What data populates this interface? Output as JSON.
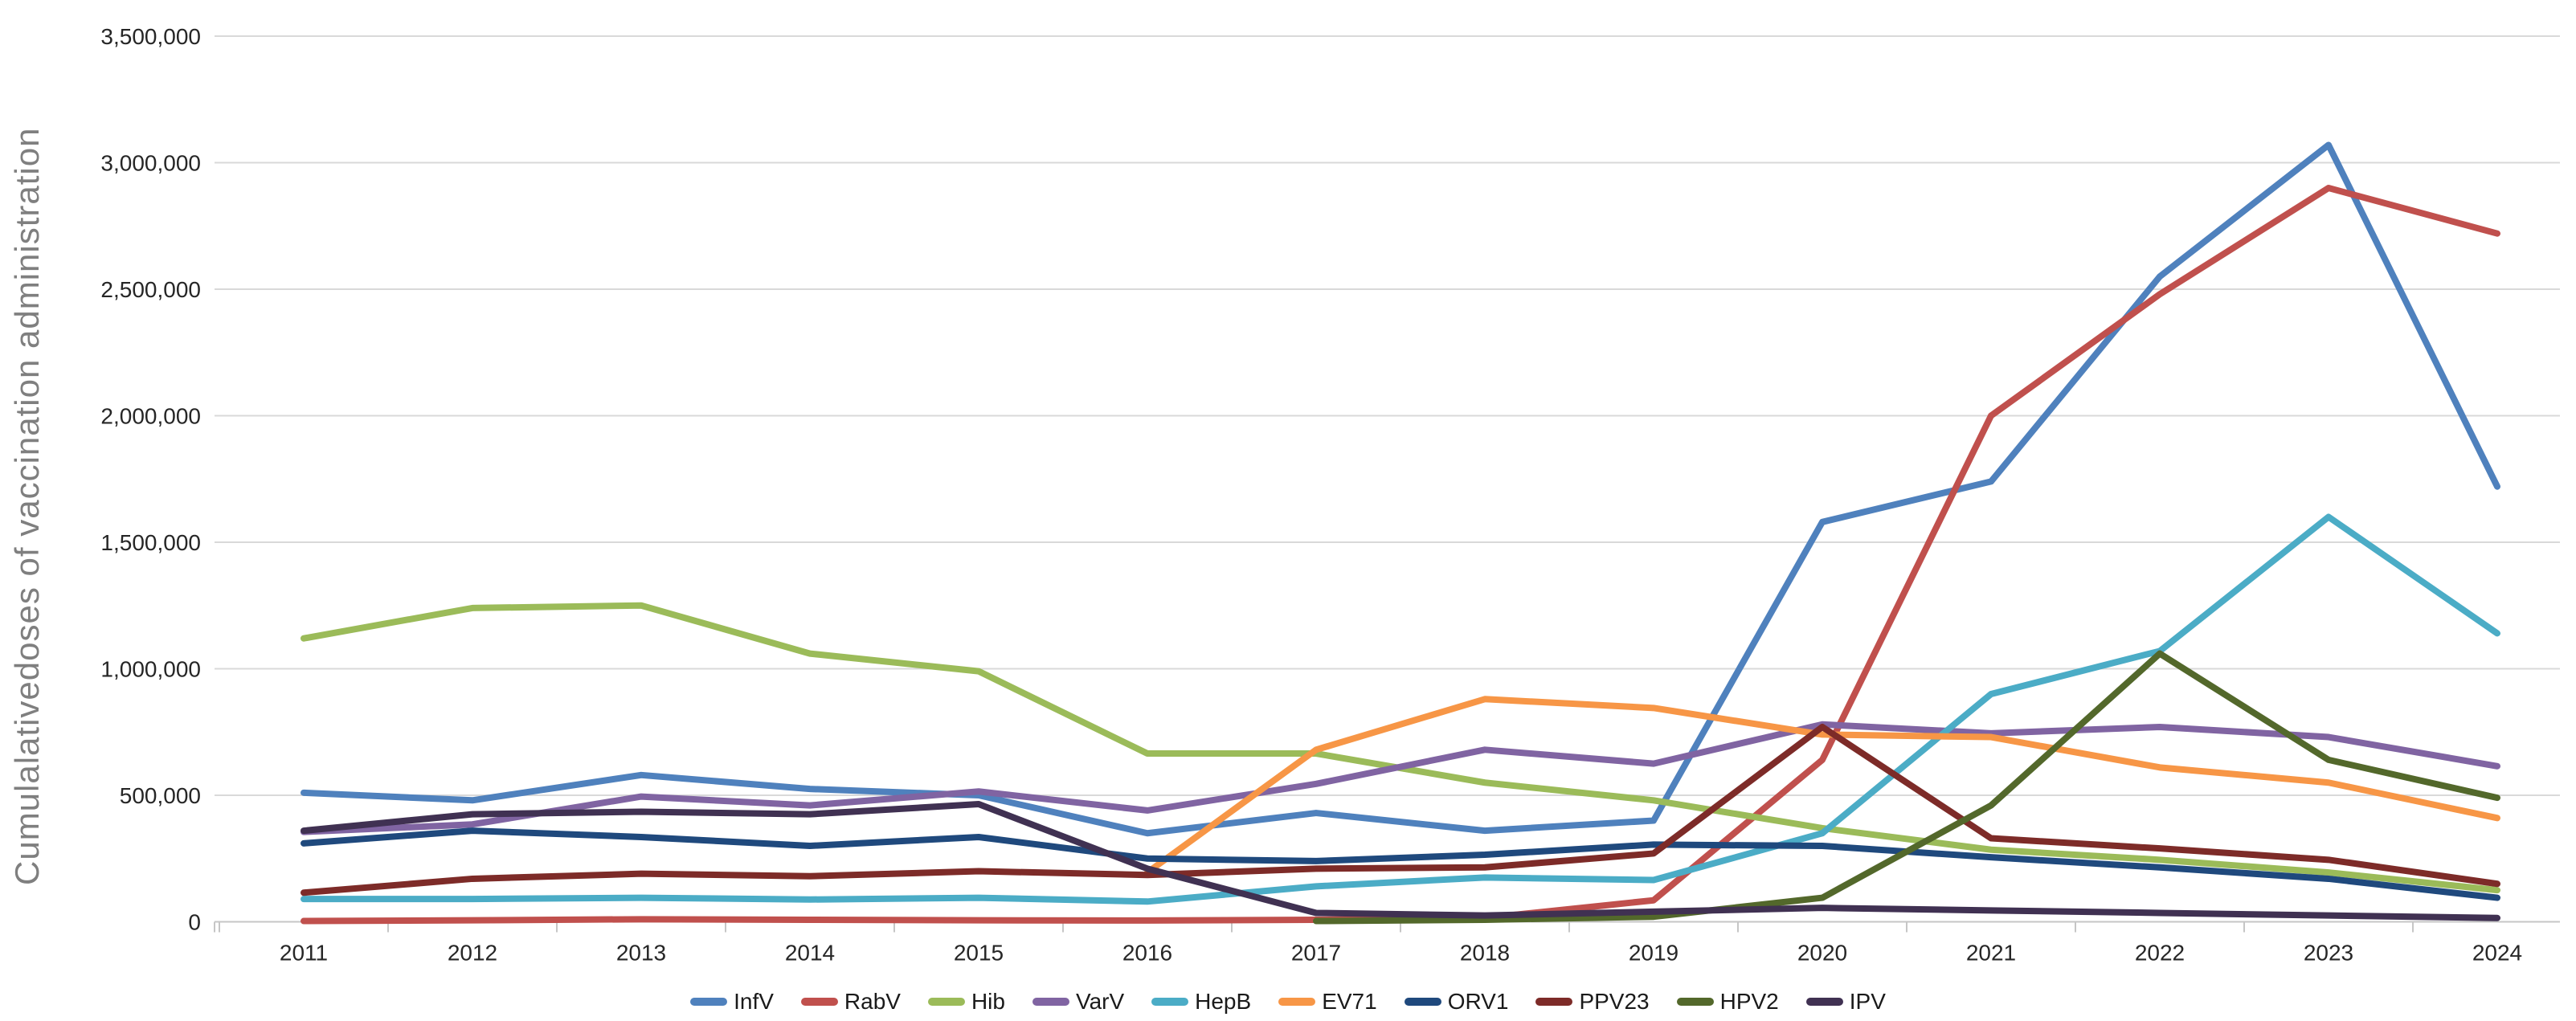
{
  "chart": {
    "y_axis_title": "Cumulalativedoses of vaccination administration"
  },
  "chart_data": {
    "type": "line",
    "title": "",
    "xlabel": "",
    "ylabel": "Cumulalativedoses of vaccination administration",
    "categories": [
      "2011",
      "2012",
      "2013",
      "2014",
      "2015",
      "2016",
      "2017",
      "2018",
      "2019",
      "2020",
      "2021",
      "2022",
      "2023",
      "2024"
    ],
    "ylim": [
      0,
      3500000
    ],
    "y_step": 500000,
    "y_tick_labels": [
      "0",
      "500,000",
      "1,000,000",
      "1,500,000",
      "2,000,000",
      "2,500,000",
      "3,000,000",
      "3,500,000"
    ],
    "grid": true,
    "legend_position": "bottom",
    "series": [
      {
        "name": "InfV",
        "color": "#4F81BD",
        "values": [
          510000,
          480000,
          580000,
          525000,
          500000,
          350000,
          430000,
          360000,
          400000,
          1580000,
          1740000,
          2550000,
          3070000,
          1720000
        ]
      },
      {
        "name": "RabV",
        "color": "#C0504D",
        "values": [
          3000,
          6000,
          10000,
          8000,
          6000,
          5000,
          8000,
          15000,
          85000,
          640000,
          2000000,
          2480000,
          2900000,
          2720000
        ]
      },
      {
        "name": "Hib",
        "color": "#9BBB59",
        "values": [
          1120000,
          1240000,
          1250000,
          1060000,
          990000,
          665000,
          665000,
          550000,
          480000,
          370000,
          285000,
          245000,
          195000,
          125000
        ]
      },
      {
        "name": "VarV",
        "color": "#8064A2",
        "values": [
          355000,
          385000,
          495000,
          460000,
          515000,
          440000,
          545000,
          680000,
          625000,
          780000,
          745000,
          770000,
          730000,
          615000
        ]
      },
      {
        "name": "HepB",
        "color": "#4BACC6",
        "values": [
          90000,
          90000,
          95000,
          88000,
          95000,
          80000,
          140000,
          175000,
          165000,
          350000,
          900000,
          1070000,
          1600000,
          1140000
        ]
      },
      {
        "name": "EV71",
        "color": "#F79646",
        "values": [
          null,
          null,
          null,
          null,
          null,
          195000,
          680000,
          880000,
          845000,
          740000,
          730000,
          610000,
          550000,
          410000
        ]
      },
      {
        "name": "ORV1",
        "color": "#1F497D",
        "values": [
          310000,
          360000,
          335000,
          300000,
          335000,
          250000,
          240000,
          265000,
          305000,
          300000,
          255000,
          215000,
          170000,
          95000
        ]
      },
      {
        "name": "PPV23",
        "color": "#7D2B28",
        "values": [
          115000,
          170000,
          190000,
          180000,
          200000,
          185000,
          210000,
          215000,
          270000,
          770000,
          330000,
          290000,
          245000,
          150000
        ]
      },
      {
        "name": "HPV2",
        "color": "#53682B",
        "values": [
          null,
          null,
          null,
          null,
          null,
          null,
          3000,
          8000,
          20000,
          95000,
          460000,
          1060000,
          640000,
          490000
        ]
      },
      {
        "name": "IPV",
        "color": "#403152",
        "values": [
          360000,
          425000,
          435000,
          425000,
          465000,
          210000,
          35000,
          25000,
          40000,
          55000,
          45000,
          35000,
          25000,
          15000
        ]
      }
    ]
  }
}
